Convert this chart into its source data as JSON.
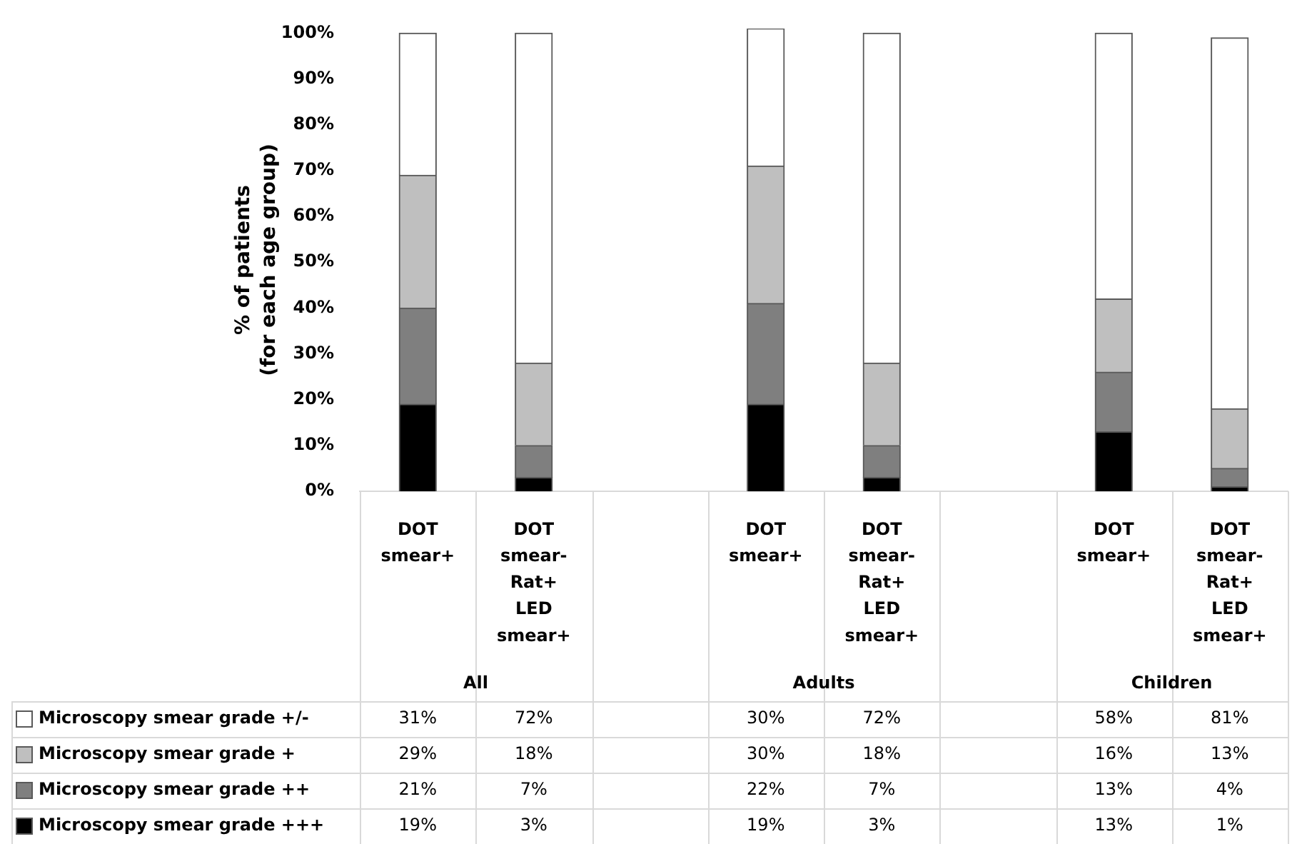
{
  "chart_data": {
    "type": "bar",
    "stacked": true,
    "ylabel": "% of patients\n(for each age group)",
    "categories": [
      "DOT smear+",
      "DOT smear-Rat+ LED smear+",
      null,
      "DOT smear+",
      "DOT smear-Rat+ LED smear+",
      null,
      "DOT smear+",
      "DOT smear-Rat+ LED smear+"
    ],
    "annotations": [
      "All",
      "Adults",
      "Children"
    ],
    "ylim": [
      0,
      101
    ],
    "yticks": [
      {
        "value": 0,
        "label": "0%"
      },
      {
        "value": 10,
        "label": "10%"
      },
      {
        "value": 20,
        "label": "20%"
      },
      {
        "value": 30,
        "label": "30%"
      },
      {
        "value": 40,
        "label": "40%"
      },
      {
        "value": 50,
        "label": "50%"
      },
      {
        "value": 60,
        "label": "60%"
      },
      {
        "value": 70,
        "label": "70%"
      },
      {
        "value": 80,
        "label": "80%"
      },
      {
        "value": 90,
        "label": "90%"
      },
      {
        "value": 100,
        "label": "100%"
      }
    ],
    "grid": false,
    "legend": "bottom left",
    "series": [
      {
        "name": "Microscopy smear grade +++",
        "color": "#000000",
        "values": [
          19,
          3,
          null,
          19,
          3,
          null,
          13,
          1
        ],
        "value_labels": [
          "19%",
          "3%",
          null,
          "19%",
          "3%",
          null,
          "13%",
          "1%"
        ]
      },
      {
        "name": "Microscopy smear grade ++",
        "color": "#7f7f7f",
        "values": [
          21,
          7,
          null,
          22,
          7,
          null,
          13,
          4
        ],
        "value_labels": [
          "21%",
          "7%",
          null,
          "22%",
          "7%",
          null,
          "13%",
          "4%"
        ]
      },
      {
        "name": "Microscopy smear grade +",
        "color": "#bfbfbf",
        "values": [
          29,
          18,
          null,
          30,
          18,
          null,
          16,
          13
        ],
        "value_labels": [
          "29%",
          "18%",
          null,
          "30%",
          "18%",
          null,
          "16%",
          "13%"
        ]
      },
      {
        "name": "Microscopy smear grade +/-",
        "color": "#ffffff",
        "values": [
          31,
          72,
          null,
          30,
          72,
          null,
          58,
          81
        ],
        "value_labels": [
          "31%",
          "72%",
          null,
          "30%",
          "72%",
          null,
          "58%",
          "81%"
        ]
      }
    ]
  }
}
